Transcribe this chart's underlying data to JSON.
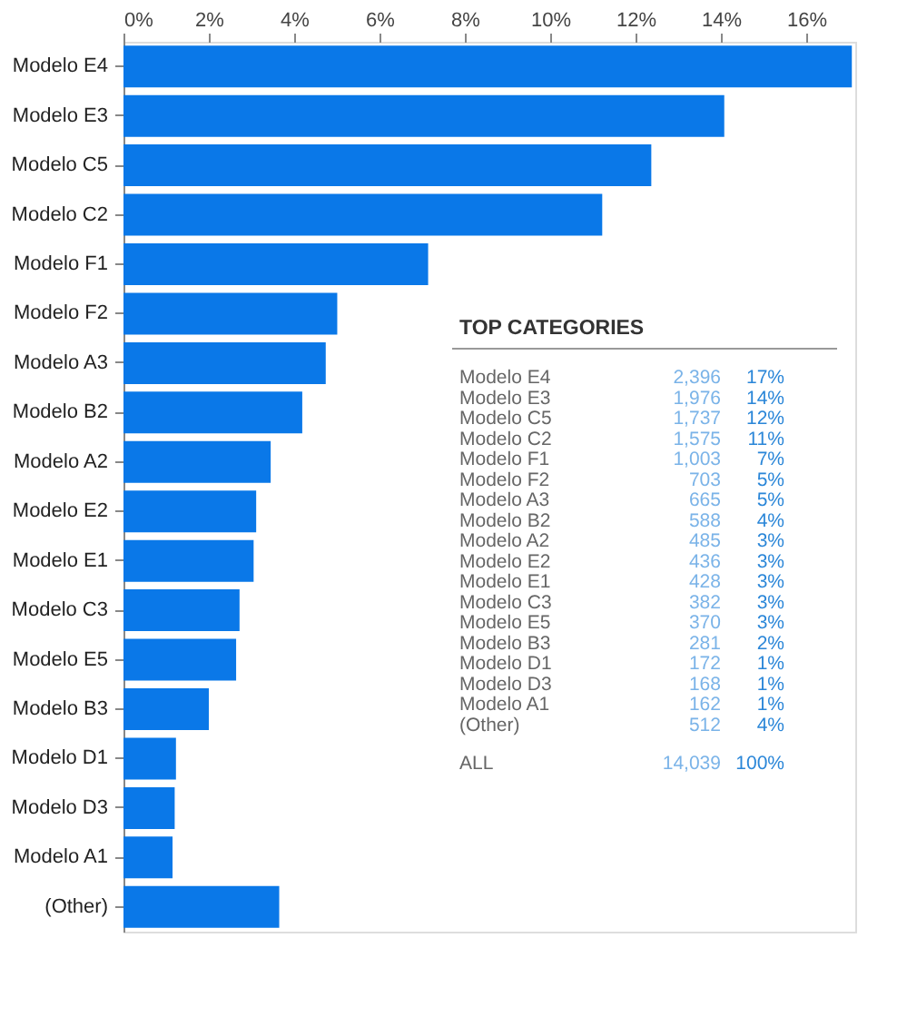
{
  "chart_data": {
    "type": "bar",
    "orientation": "horizontal",
    "categories": [
      "Modelo E4",
      "Modelo E3",
      "Modelo C5",
      "Modelo C2",
      "Modelo F1",
      "Modelo F2",
      "Modelo A3",
      "Modelo B2",
      "Modelo A2",
      "Modelo E2",
      "Modelo E1",
      "Modelo C3",
      "Modelo E5",
      "Modelo B3",
      "Modelo D1",
      "Modelo D3",
      "Modelo A1",
      "(Other)"
    ],
    "values": [
      17.07,
      14.08,
      12.37,
      11.22,
      7.14,
      5.01,
      4.74,
      4.19,
      3.45,
      3.11,
      3.05,
      2.72,
      2.64,
      2.0,
      1.23,
      1.2,
      1.15,
      3.65
    ],
    "color": "#0a78e8",
    "xlim": [
      0,
      17.15
    ],
    "xticks": [
      {
        "value": 0,
        "label": "0%"
      },
      {
        "value": 2,
        "label": "2%"
      },
      {
        "value": 4,
        "label": "4%"
      },
      {
        "value": 6,
        "label": "6%"
      },
      {
        "value": 8,
        "label": "8%"
      },
      {
        "value": 10,
        "label": "10%"
      },
      {
        "value": 12,
        "label": "12%"
      },
      {
        "value": 14,
        "label": "14%"
      },
      {
        "value": 16,
        "label": "16%"
      }
    ],
    "grid": false,
    "annotations": [
      "TOP CATEGORIES",
      "Modelo E4",
      "2,396",
      "17%",
      "Modelo E3",
      "1,976",
      "14%",
      "Modelo C5",
      "1,737",
      "12%",
      "Modelo C2",
      "1,575",
      "11%",
      "Modelo F1",
      "1,003",
      "7%",
      "Modelo F2",
      "703",
      "5%",
      "Modelo A3",
      "665",
      "5%",
      "Modelo B2",
      "588",
      "4%",
      "Modelo A2",
      "485",
      "3%",
      "Modelo E2",
      "436",
      "3%",
      "Modelo E1",
      "428",
      "3%",
      "Modelo C3",
      "382",
      "3%",
      "Modelo E5",
      "370",
      "3%",
      "Modelo B3",
      "281",
      "2%",
      "Modelo D1",
      "172",
      "1%",
      "Modelo D3",
      "168",
      "1%",
      "Modelo A1",
      "162",
      "1%",
      "(Other)",
      "512",
      "4%",
      "ALL",
      "14,039",
      "100%"
    ]
  }
}
